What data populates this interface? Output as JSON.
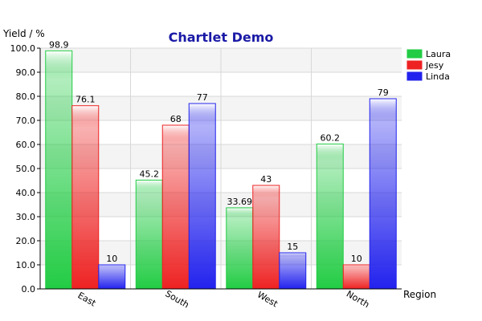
{
  "chart_data": {
    "type": "bar",
    "title": "Chartlet Demo",
    "xlabel": "Region",
    "ylabel": "Yield / %",
    "ylim": [
      0,
      100
    ],
    "yticks": [
      "0.0",
      "10.0",
      "20.0",
      "30.0",
      "40.0",
      "50.0",
      "60.0",
      "70.0",
      "80.0",
      "90.0",
      "100.0"
    ],
    "categories": [
      "East",
      "South",
      "West",
      "North"
    ],
    "series": [
      {
        "name": "Laura",
        "color": "#22cc44",
        "values": [
          98.9,
          45.2,
          33.69,
          60.2
        ],
        "labels": [
          "98.9",
          "45.2",
          "33.69",
          "60.2"
        ]
      },
      {
        "name": "Jesy",
        "color": "#ee2222",
        "values": [
          76.1,
          68,
          43,
          10
        ],
        "labels": [
          "76.1",
          "68",
          "43",
          "10"
        ]
      },
      {
        "name": "Linda",
        "color": "#2222ee",
        "values": [
          10,
          77,
          15,
          79
        ],
        "labels": [
          "10",
          "77",
          "15",
          "79"
        ]
      }
    ],
    "grid": true,
    "legend_position": "top-right"
  }
}
